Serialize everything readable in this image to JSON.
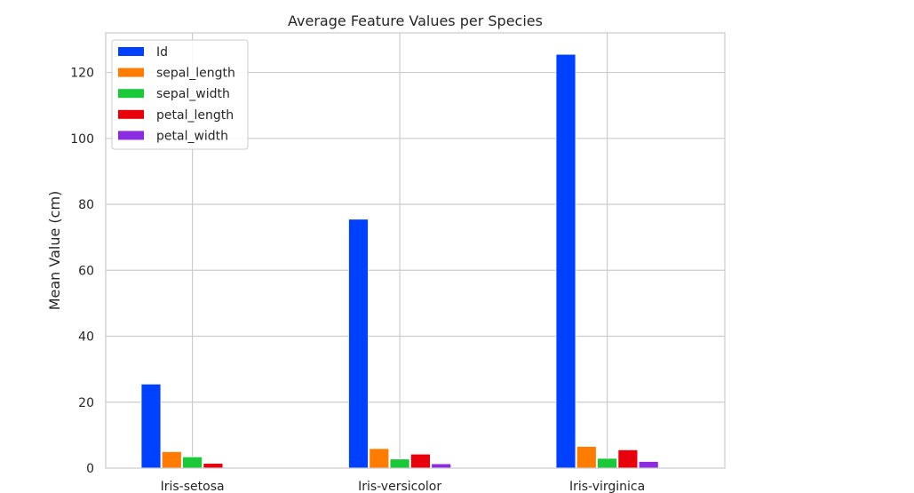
{
  "chart_data": {
    "type": "bar",
    "title": "Average Feature Values per Species",
    "xlabel": "",
    "ylabel": "Mean Value (cm)",
    "categories": [
      "Iris-setosa",
      "Iris-versicolor",
      "Iris-virginica"
    ],
    "ylim": [
      0,
      132
    ],
    "yticks": [
      0,
      20,
      40,
      60,
      80,
      100,
      120
    ],
    "grid": true,
    "legend_position": "top-left",
    "series": [
      {
        "name": "Id",
        "color": "#0040ff",
        "values": [
          25.5,
          75.5,
          125.5
        ]
      },
      {
        "name": "sepal_length",
        "color": "#ff7c00",
        "values": [
          5.006,
          5.936,
          6.588
        ]
      },
      {
        "name": "sepal_width",
        "color": "#1ac938",
        "values": [
          3.418,
          2.77,
          2.974
        ]
      },
      {
        "name": "petal_length",
        "color": "#e8000b",
        "values": [
          1.464,
          4.26,
          5.552
        ]
      },
      {
        "name": "petal_width",
        "color": "#8b2be2",
        "values": [
          0.244,
          1.326,
          2.026
        ]
      }
    ]
  }
}
